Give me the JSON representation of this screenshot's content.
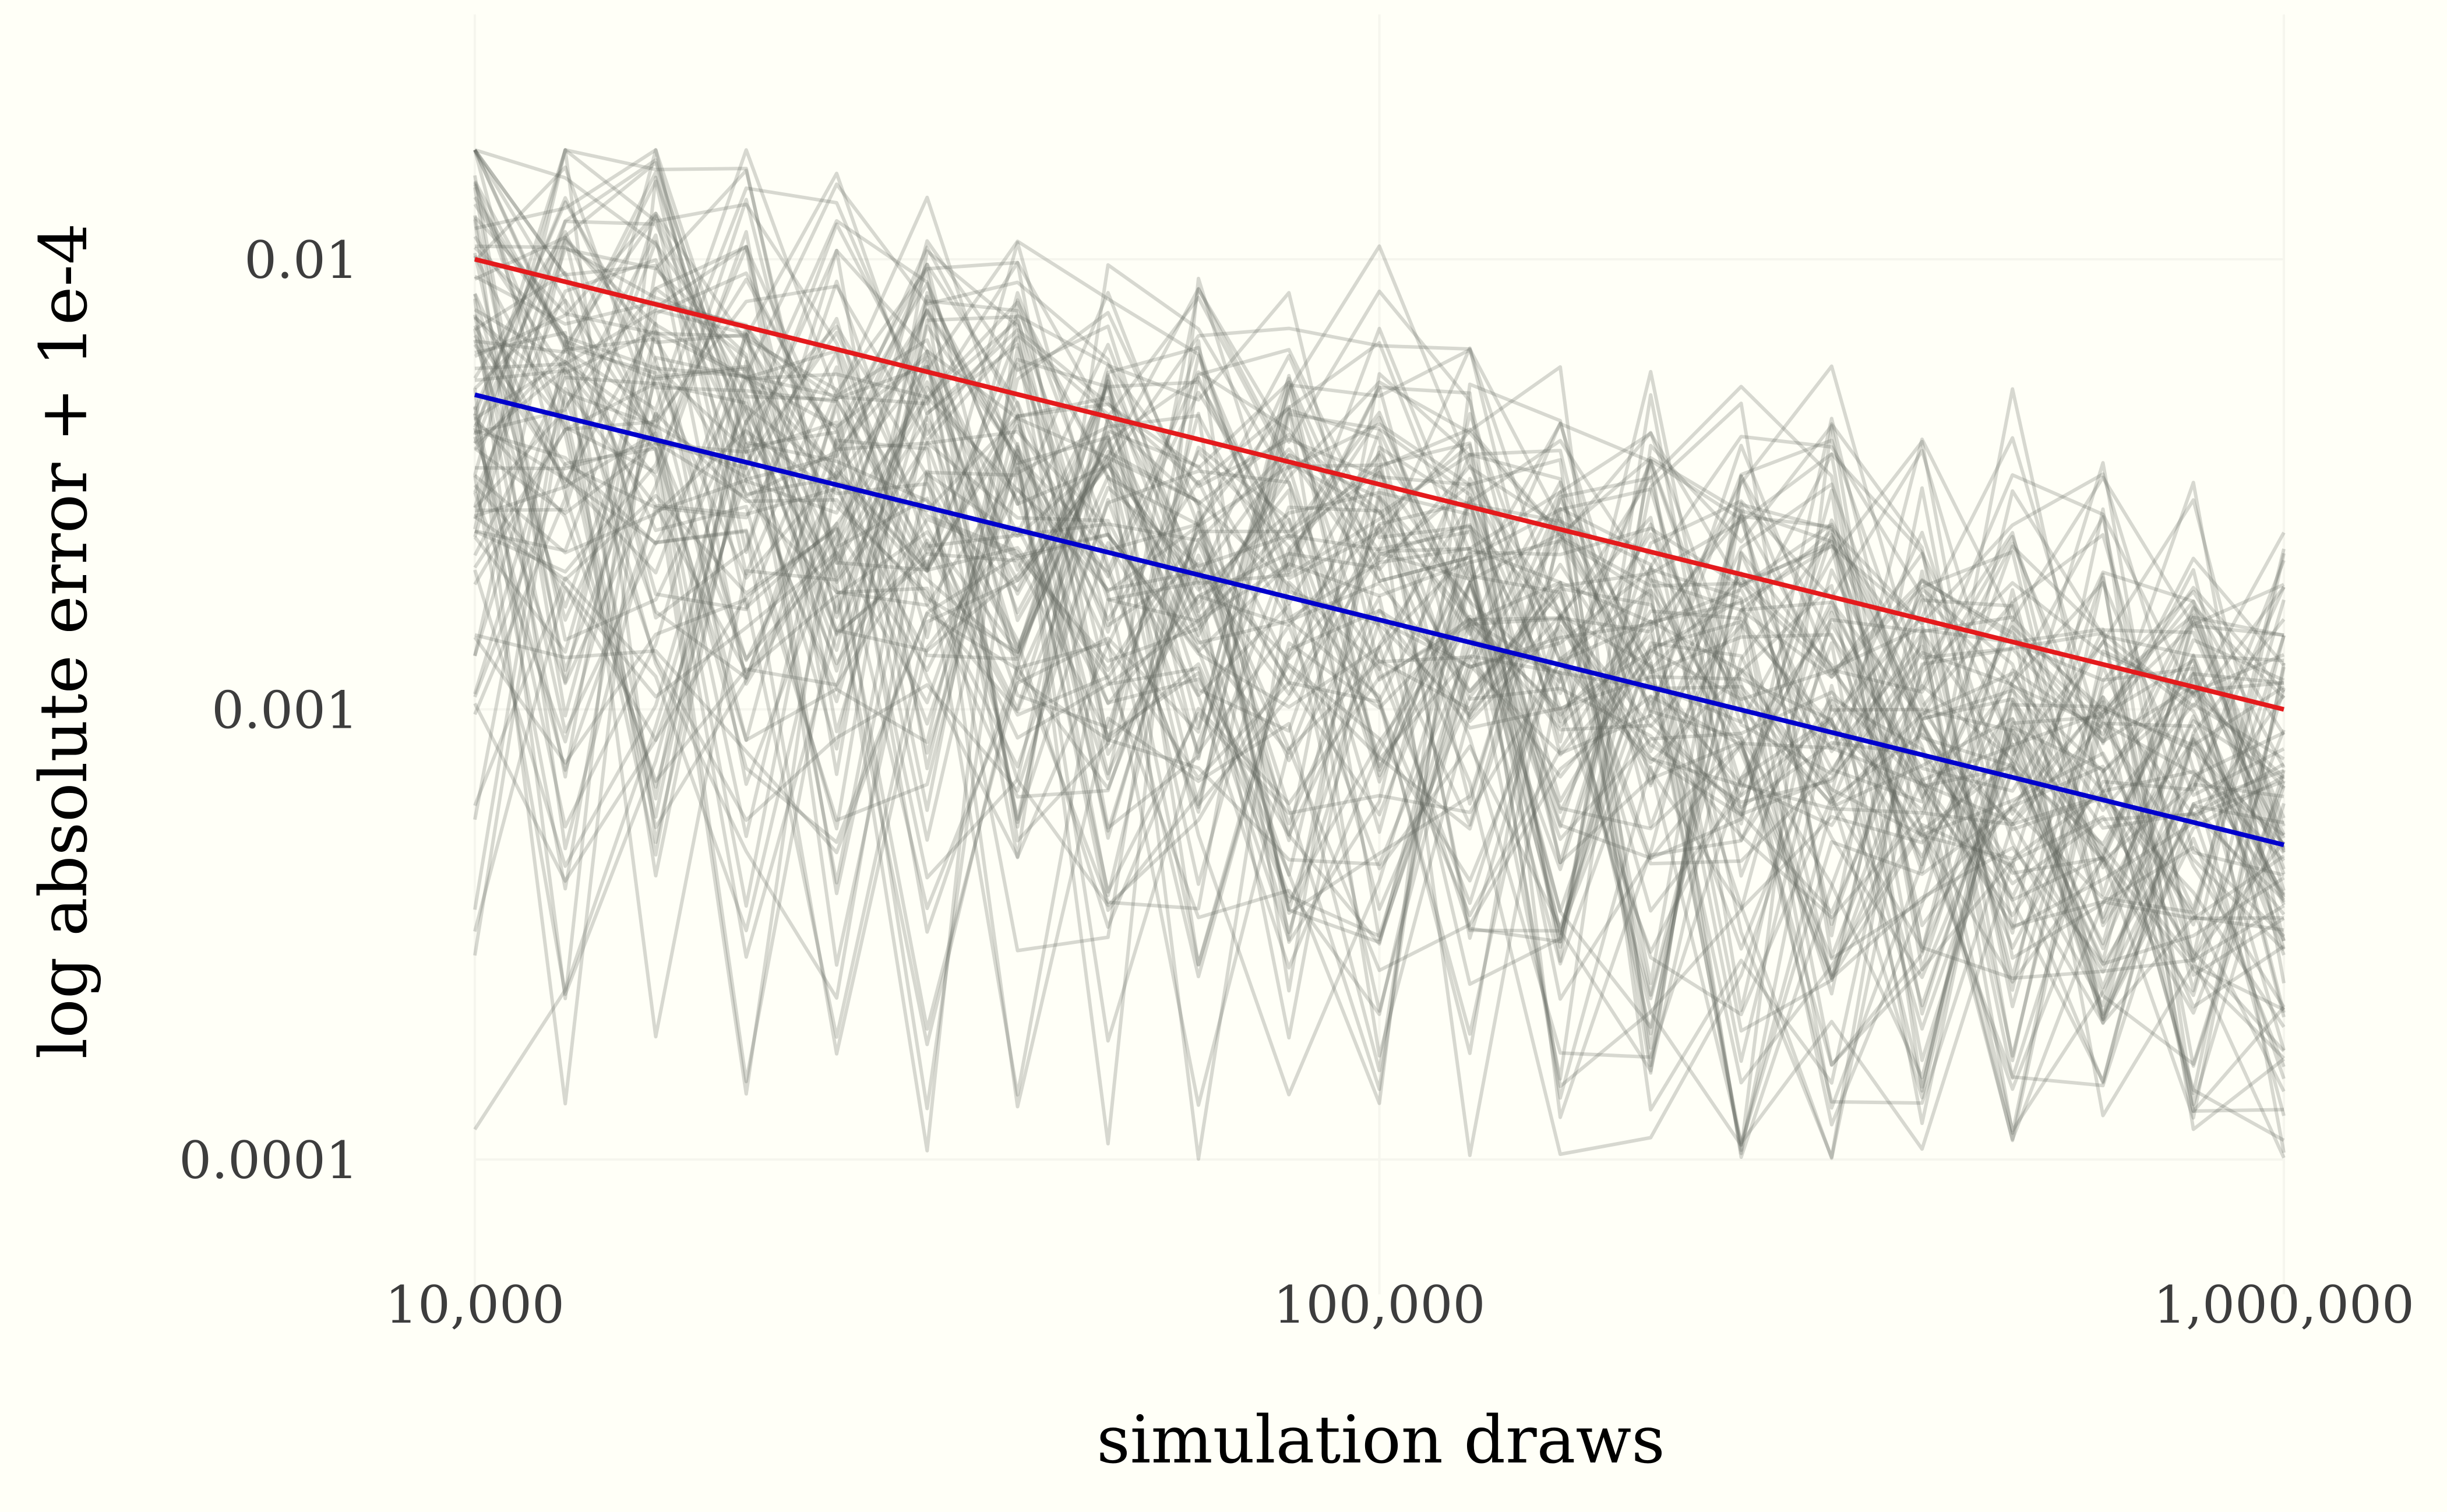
{
  "chart_data": {
    "type": "line",
    "xlabel": "simulation draws",
    "ylabel": "log absolute error + 1e-4",
    "x_scale": "log10",
    "y_scale": "log10",
    "xlim": [
      10000,
      1000000
    ],
    "ylim": [
      6e-05,
      0.035
    ],
    "x_ticks": [
      {
        "value": 10000,
        "label": "10,000"
      },
      {
        "value": 100000,
        "label": "100,000"
      },
      {
        "value": 1000000,
        "label": "1,000,000"
      }
    ],
    "y_ticks": [
      {
        "value": 0.01,
        "label": "0.01"
      },
      {
        "value": 0.001,
        "label": "0.001"
      },
      {
        "value": 0.0001,
        "label": "0.0001"
      }
    ],
    "grid": true,
    "background": "#fffff7",
    "series": [
      {
        "color": "#e41a1c",
        "x": [
          10000,
          1000000
        ],
        "y": [
          0.01,
          0.001
        ]
      },
      {
        "color": "#0000cc",
        "x": [
          10000,
          1000000
        ],
        "y": [
          0.005,
          0.0005
        ]
      }
    ],
    "simulation_traces": {
      "count": 100,
      "color": "#5f635d",
      "opacity": 0.25,
      "x": [
        10000,
        12589,
        15849,
        19953,
        25119,
        31623,
        39811,
        50119,
        63096,
        79433,
        100000,
        125893,
        158489,
        199526,
        251189,
        316228,
        398107,
        501187,
        630957,
        794328,
        1000000
      ],
      "scale_range": [
        0.003,
        0.012
      ],
      "shape": "scale * x^-0.5 * |N(0,1)| + 1e-4"
    }
  }
}
